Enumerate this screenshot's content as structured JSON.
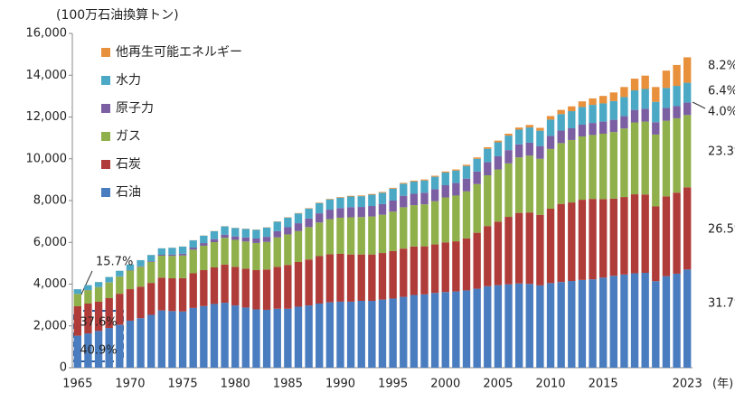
{
  "chart_data": {
    "type": "stacked_bar",
    "y_axis_label": "(100万石油換算トン)",
    "x_axis_label": "(年)",
    "categories": [
      "1965",
      null,
      null,
      null,
      null,
      "1970",
      null,
      null,
      null,
      null,
      "1975",
      null,
      null,
      null,
      null,
      "1980",
      null,
      null,
      null,
      null,
      "1985",
      null,
      null,
      null,
      null,
      "1990",
      null,
      null,
      null,
      null,
      "1995",
      null,
      null,
      null,
      null,
      "2000",
      null,
      null,
      null,
      null,
      "2005",
      null,
      null,
      null,
      null,
      "2010",
      null,
      null,
      null,
      null,
      "2015",
      null,
      null,
      null,
      null,
      null,
      null,
      null,
      "2023"
    ],
    "series": [
      {
        "name": "石油",
        "color": "#4a7dbf",
        "values": [
          1530,
          1640,
          1760,
          1900,
          2060,
          2250,
          2370,
          2530,
          2740,
          2710,
          2690,
          2860,
          2950,
          3050,
          3110,
          2980,
          2880,
          2790,
          2770,
          2820,
          2820,
          2920,
          2980,
          3070,
          3130,
          3160,
          3160,
          3200,
          3200,
          3260,
          3310,
          3390,
          3480,
          3510,
          3580,
          3620,
          3650,
          3700,
          3780,
          3900,
          3950,
          3990,
          4030,
          4010,
          3940,
          4050,
          4100,
          4150,
          4200,
          4230,
          4310,
          4400,
          4460,
          4520,
          4540,
          4140,
          4380,
          4500,
          4700
        ]
      },
      {
        "name": "石炭",
        "color": "#b03c3a",
        "values": [
          1410,
          1430,
          1400,
          1430,
          1480,
          1510,
          1510,
          1530,
          1570,
          1570,
          1600,
          1660,
          1720,
          1750,
          1830,
          1850,
          1860,
          1880,
          1930,
          2010,
          2100,
          2140,
          2200,
          2270,
          2300,
          2290,
          2260,
          2220,
          2220,
          2230,
          2270,
          2310,
          2320,
          2300,
          2320,
          2380,
          2400,
          2490,
          2680,
          2880,
          3040,
          3230,
          3380,
          3420,
          3380,
          3560,
          3740,
          3760,
          3840,
          3850,
          3760,
          3690,
          3710,
          3780,
          3750,
          3580,
          3820,
          3880,
          3935
        ]
      },
      {
        "name": "ガス",
        "color": "#8fb04a",
        "values": [
          590,
          640,
          690,
          750,
          820,
          890,
          950,
          1000,
          1050,
          1070,
          1080,
          1130,
          1170,
          1210,
          1280,
          1290,
          1300,
          1300,
          1320,
          1410,
          1460,
          1480,
          1550,
          1610,
          1680,
          1730,
          1780,
          1790,
          1820,
          1830,
          1890,
          1980,
          1980,
          2010,
          2070,
          2150,
          2190,
          2250,
          2330,
          2430,
          2500,
          2560,
          2660,
          2720,
          2680,
          2860,
          2910,
          2990,
          3030,
          3060,
          3130,
          3190,
          3280,
          3440,
          3490,
          3440,
          3620,
          3560,
          3460
        ]
      },
      {
        "name": "原子力",
        "color": "#7c5fa2",
        "values": [
          6,
          8,
          10,
          12,
          14,
          18,
          25,
          35,
          46,
          60,
          85,
          100,
          125,
          145,
          150,
          165,
          195,
          215,
          245,
          295,
          345,
          375,
          410,
          440,
          455,
          460,
          480,
          485,
          500,
          510,
          530,
          550,
          545,
          555,
          575,
          585,
          600,
          610,
          600,
          625,
          630,
          635,
          620,
          620,
          610,
          625,
          600,
          560,
          563,
          575,
          580,
          585,
          590,
          600,
          615,
          590,
          610,
          580,
          594
        ]
      },
      {
        "name": "水力",
        "color": "#4ba9c6",
        "values": [
          220,
          235,
          240,
          250,
          265,
          275,
          290,
          300,
          305,
          330,
          340,
          345,
          355,
          380,
          395,
          400,
          410,
          420,
          440,
          455,
          460,
          470,
          475,
          490,
          490,
          500,
          515,
          515,
          540,
          545,
          570,
          575,
          585,
          590,
          595,
          605,
          595,
          605,
          610,
          645,
          670,
          695,
          705,
          730,
          735,
          780,
          790,
          820,
          845,
          865,
          870,
          900,
          915,
          935,
          945,
          975,
          960,
          970,
          950
        ]
      },
      {
        "name": "他再生可能エネルギー",
        "color": "#e8903c",
        "values": [
          2,
          2,
          3,
          3,
          3,
          4,
          4,
          5,
          5,
          6,
          6,
          7,
          7,
          8,
          9,
          10,
          11,
          12,
          13,
          15,
          17,
          19,
          21,
          23,
          25,
          30,
          32,
          34,
          36,
          38,
          40,
          42,
          44,
          46,
          48,
          50,
          55,
          60,
          65,
          72,
          80,
          90,
          100,
          120,
          135,
          170,
          200,
          230,
          270,
          310,
          360,
          410,
          480,
          560,
          640,
          710,
          830,
          1000,
          1218
        ]
      }
    ],
    "ylim": [
      0,
      16000
    ],
    "yticks": [
      0,
      {
        "value": 2000,
        "label": "2,000"
      },
      {
        "value": 4000,
        "label": "4,000"
      },
      {
        "value": 6000,
        "label": "6,000"
      },
      {
        "value": 8000,
        "label": "8,000"
      },
      {
        "value": 10000,
        "label": "10,000"
      },
      {
        "value": 12000,
        "label": "12,000"
      },
      {
        "value": 14000,
        "label": "14,000"
      },
      {
        "value": 16000,
        "label": "16,000"
      }
    ],
    "annotations": [
      "15.7%",
      "37.6%",
      "40.9%",
      "8.2%",
      "6.4%",
      "4.0%",
      "23.3%",
      "26.5%",
      "31.7%"
    ]
  }
}
